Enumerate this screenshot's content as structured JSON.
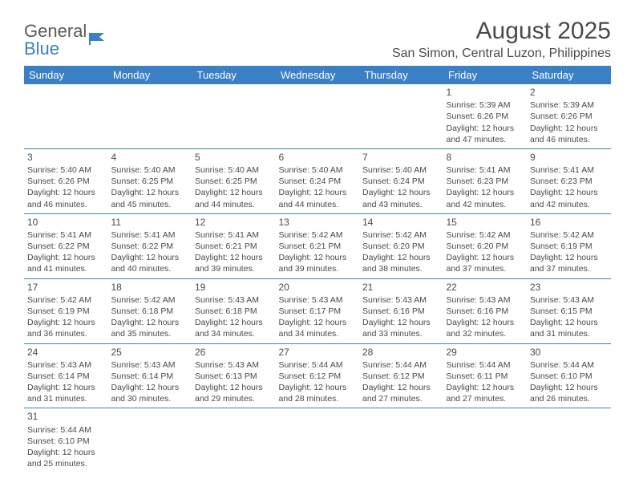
{
  "brand": {
    "part1": "General",
    "part2": "Blue"
  },
  "title": "August 2025",
  "location": "San Simon, Central Luzon, Philippines",
  "colors": {
    "header_bg": "#3b7fc4",
    "header_text": "#ffffff",
    "border": "#3b7fc4",
    "text": "#4a4a4a",
    "background": "#ffffff"
  },
  "weekdays": [
    "Sunday",
    "Monday",
    "Tuesday",
    "Wednesday",
    "Thursday",
    "Friday",
    "Saturday"
  ],
  "grid": [
    [
      null,
      null,
      null,
      null,
      null,
      {
        "n": "1",
        "sr": "5:39 AM",
        "ss": "6:26 PM",
        "dl": "12 hours and 47 minutes."
      },
      {
        "n": "2",
        "sr": "5:39 AM",
        "ss": "6:26 PM",
        "dl": "12 hours and 46 minutes."
      }
    ],
    [
      {
        "n": "3",
        "sr": "5:40 AM",
        "ss": "6:26 PM",
        "dl": "12 hours and 46 minutes."
      },
      {
        "n": "4",
        "sr": "5:40 AM",
        "ss": "6:25 PM",
        "dl": "12 hours and 45 minutes."
      },
      {
        "n": "5",
        "sr": "5:40 AM",
        "ss": "6:25 PM",
        "dl": "12 hours and 44 minutes."
      },
      {
        "n": "6",
        "sr": "5:40 AM",
        "ss": "6:24 PM",
        "dl": "12 hours and 44 minutes."
      },
      {
        "n": "7",
        "sr": "5:40 AM",
        "ss": "6:24 PM",
        "dl": "12 hours and 43 minutes."
      },
      {
        "n": "8",
        "sr": "5:41 AM",
        "ss": "6:23 PM",
        "dl": "12 hours and 42 minutes."
      },
      {
        "n": "9",
        "sr": "5:41 AM",
        "ss": "6:23 PM",
        "dl": "12 hours and 42 minutes."
      }
    ],
    [
      {
        "n": "10",
        "sr": "5:41 AM",
        "ss": "6:22 PM",
        "dl": "12 hours and 41 minutes."
      },
      {
        "n": "11",
        "sr": "5:41 AM",
        "ss": "6:22 PM",
        "dl": "12 hours and 40 minutes."
      },
      {
        "n": "12",
        "sr": "5:41 AM",
        "ss": "6:21 PM",
        "dl": "12 hours and 39 minutes."
      },
      {
        "n": "13",
        "sr": "5:42 AM",
        "ss": "6:21 PM",
        "dl": "12 hours and 39 minutes."
      },
      {
        "n": "14",
        "sr": "5:42 AM",
        "ss": "6:20 PM",
        "dl": "12 hours and 38 minutes."
      },
      {
        "n": "15",
        "sr": "5:42 AM",
        "ss": "6:20 PM",
        "dl": "12 hours and 37 minutes."
      },
      {
        "n": "16",
        "sr": "5:42 AM",
        "ss": "6:19 PM",
        "dl": "12 hours and 37 minutes."
      }
    ],
    [
      {
        "n": "17",
        "sr": "5:42 AM",
        "ss": "6:19 PM",
        "dl": "12 hours and 36 minutes."
      },
      {
        "n": "18",
        "sr": "5:42 AM",
        "ss": "6:18 PM",
        "dl": "12 hours and 35 minutes."
      },
      {
        "n": "19",
        "sr": "5:43 AM",
        "ss": "6:18 PM",
        "dl": "12 hours and 34 minutes."
      },
      {
        "n": "20",
        "sr": "5:43 AM",
        "ss": "6:17 PM",
        "dl": "12 hours and 34 minutes."
      },
      {
        "n": "21",
        "sr": "5:43 AM",
        "ss": "6:16 PM",
        "dl": "12 hours and 33 minutes."
      },
      {
        "n": "22",
        "sr": "5:43 AM",
        "ss": "6:16 PM",
        "dl": "12 hours and 32 minutes."
      },
      {
        "n": "23",
        "sr": "5:43 AM",
        "ss": "6:15 PM",
        "dl": "12 hours and 31 minutes."
      }
    ],
    [
      {
        "n": "24",
        "sr": "5:43 AM",
        "ss": "6:14 PM",
        "dl": "12 hours and 31 minutes."
      },
      {
        "n": "25",
        "sr": "5:43 AM",
        "ss": "6:14 PM",
        "dl": "12 hours and 30 minutes."
      },
      {
        "n": "26",
        "sr": "5:43 AM",
        "ss": "6:13 PM",
        "dl": "12 hours and 29 minutes."
      },
      {
        "n": "27",
        "sr": "5:44 AM",
        "ss": "6:12 PM",
        "dl": "12 hours and 28 minutes."
      },
      {
        "n": "28",
        "sr": "5:44 AM",
        "ss": "6:12 PM",
        "dl": "12 hours and 27 minutes."
      },
      {
        "n": "29",
        "sr": "5:44 AM",
        "ss": "6:11 PM",
        "dl": "12 hours and 27 minutes."
      },
      {
        "n": "30",
        "sr": "5:44 AM",
        "ss": "6:10 PM",
        "dl": "12 hours and 26 minutes."
      }
    ],
    [
      {
        "n": "31",
        "sr": "5:44 AM",
        "ss": "6:10 PM",
        "dl": "12 hours and 25 minutes."
      },
      null,
      null,
      null,
      null,
      null,
      null
    ]
  ],
  "labels": {
    "sunrise": "Sunrise: ",
    "sunset": "Sunset: ",
    "daylight": "Daylight: "
  }
}
